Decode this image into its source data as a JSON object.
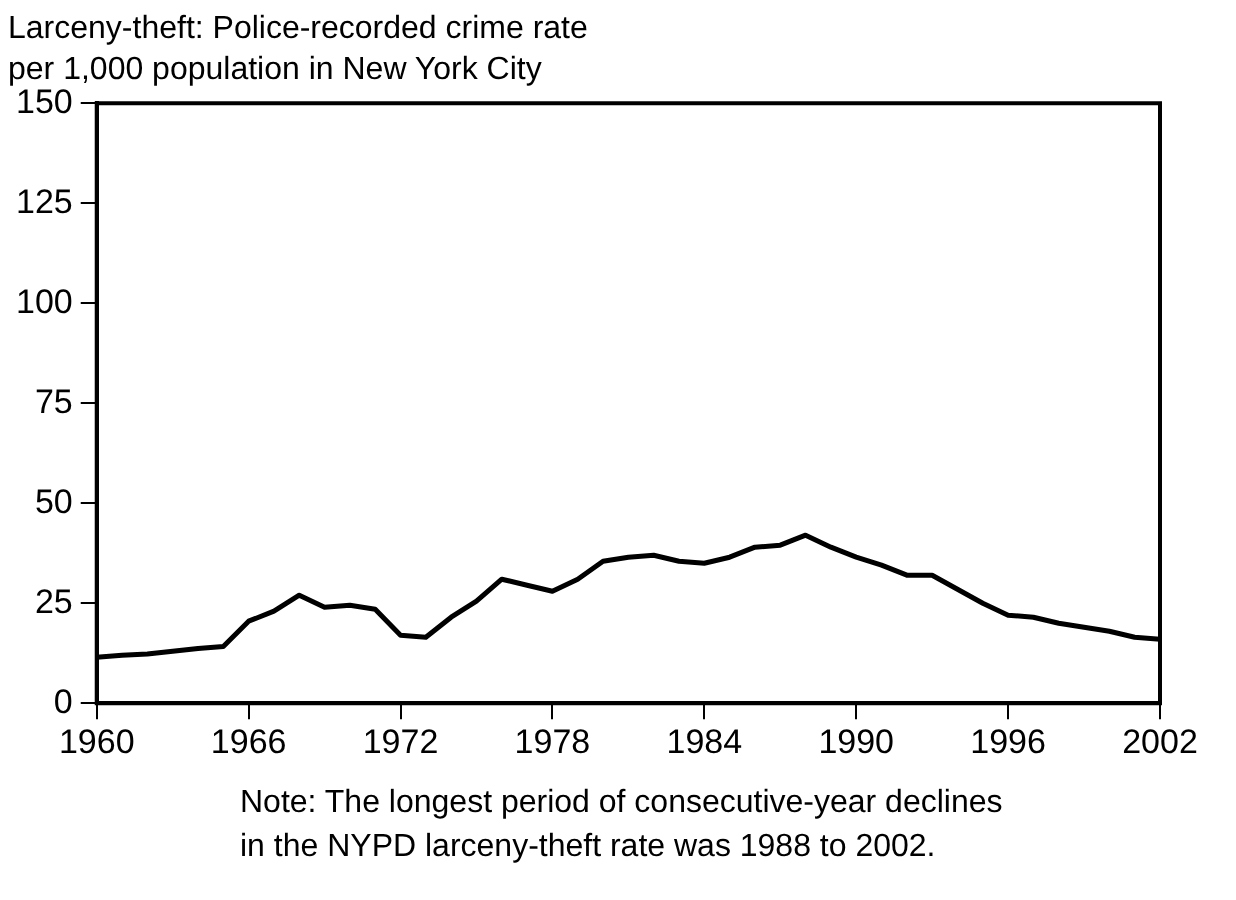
{
  "chart_data": {
    "type": "line",
    "title": [
      "Larceny-theft: Police-recorded crime rate",
      "per 1,000 population in New York City"
    ],
    "annotations": [
      "Note: The longest period of consecutive-year declines",
      "in the NYPD larceny-theft rate was 1988 to 2002."
    ],
    "x": [
      1960,
      1961,
      1962,
      1963,
      1964,
      1965,
      1966,
      1967,
      1968,
      1969,
      1970,
      1971,
      1972,
      1973,
      1974,
      1975,
      1976,
      1977,
      1978,
      1979,
      1980,
      1981,
      1982,
      1983,
      1984,
      1985,
      1986,
      1987,
      1988,
      1989,
      1990,
      1991,
      1992,
      1993,
      1994,
      1995,
      1996,
      1997,
      1998,
      1999,
      2000,
      2001,
      2002
    ],
    "series": [
      {
        "color": "#000000",
        "values": [
          11.5,
          12,
          12.3,
          13,
          13.7,
          14.2,
          20.5,
          23,
          27,
          24,
          24.5,
          23.5,
          17,
          16.5,
          21.5,
          25.5,
          31,
          29.5,
          28,
          31,
          35.5,
          36.5,
          37,
          35.5,
          35,
          36.5,
          39,
          39.5,
          42,
          39,
          36.5,
          34.5,
          32,
          32,
          28.5,
          25,
          22,
          21.5,
          20,
          19,
          18,
          16.5,
          16
        ]
      }
    ],
    "xlim": [
      1960,
      2002
    ],
    "xticks": [
      1960,
      1966,
      1972,
      1978,
      1984,
      1990,
      1996,
      2002
    ],
    "ylim": [
      0,
      150
    ],
    "yticks": [
      0,
      25,
      50,
      75,
      100,
      125,
      150
    ],
    "grid": false,
    "legend": false,
    "marker": "none",
    "line_style": "solid"
  }
}
